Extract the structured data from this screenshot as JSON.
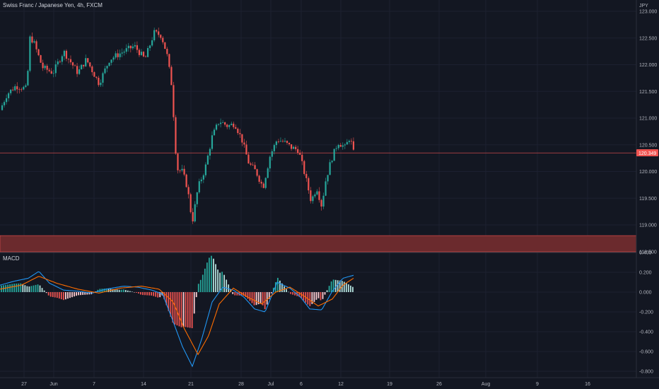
{
  "header": {
    "symbol_title": "Swiss Franc / Japanese Yen, 4h, FXCM",
    "currency": "JPY"
  },
  "indicator": {
    "name": "MACD"
  },
  "colors": {
    "background": "#131722",
    "up": "#26a69a",
    "down": "#ef5350",
    "zone": "#6b2a2d",
    "macd_line": "#2196f3",
    "signal_line": "#ff6d00"
  },
  "chart_data": [
    {
      "type": "candlestick",
      "title": "Swiss Franc / Japanese Yen, 4h, FXCM",
      "ylabel": "JPY",
      "ylim": [
        118.45,
        123.1
      ],
      "y_ticks": [
        "123.000",
        "122.500",
        "122.000",
        "121.500",
        "121.000",
        "120.500",
        "120.000",
        "119.500",
        "119.000",
        "118.500"
      ],
      "x_ticks": [
        "27",
        "Jun",
        "7",
        "14",
        "21",
        "28",
        "Jul",
        "6",
        "12",
        "19",
        "26",
        "Aug",
        "9",
        "16"
      ],
      "current_price": "120.349",
      "support_zone": [
        118.48,
        118.8
      ],
      "path_keypoints": [
        [
          0,
          121.15
        ],
        [
          10,
          121.45
        ],
        [
          22,
          121.6
        ],
        [
          38,
          121.55
        ],
        [
          42,
          122.5
        ],
        [
          47,
          122.45
        ],
        [
          60,
          121.95
        ],
        [
          75,
          121.85
        ],
        [
          90,
          122.25
        ],
        [
          110,
          121.85
        ],
        [
          122,
          122.1
        ],
        [
          140,
          121.65
        ],
        [
          155,
          122.1
        ],
        [
          175,
          122.25
        ],
        [
          190,
          122.35
        ],
        [
          205,
          122.1
        ],
        [
          218,
          122.6
        ],
        [
          228,
          122.55
        ],
        [
          236,
          122.2
        ],
        [
          243,
          121.6
        ],
        [
          250,
          120.05
        ],
        [
          258,
          120.0
        ],
        [
          265,
          119.7
        ],
        [
          272,
          119.05
        ],
        [
          280,
          119.7
        ],
        [
          290,
          120.05
        ],
        [
          300,
          120.65
        ],
        [
          310,
          120.95
        ],
        [
          322,
          120.85
        ],
        [
          332,
          120.9
        ],
        [
          342,
          120.6
        ],
        [
          352,
          120.15
        ],
        [
          362,
          120.0
        ],
        [
          372,
          119.7
        ],
        [
          382,
          120.3
        ],
        [
          392,
          120.6
        ],
        [
          402,
          120.55
        ],
        [
          412,
          120.45
        ],
        [
          422,
          120.4
        ],
        [
          432,
          119.9
        ],
        [
          440,
          119.45
        ],
        [
          448,
          119.7
        ],
        [
          455,
          119.35
        ],
        [
          460,
          119.8
        ],
        [
          468,
          120.2
        ],
        [
          478,
          120.55
        ],
        [
          488,
          120.45
        ],
        [
          495,
          120.65
        ],
        [
          500,
          120.35
        ]
      ],
      "macd": {
        "ylim": [
          -0.82,
          0.42
        ],
        "y_ticks": [
          "0.400",
          "0.200",
          "0.000",
          "-0.200",
          "-0.400",
          "-0.600",
          "-0.800"
        ],
        "macd_keypoints": [
          [
            0,
            0.07
          ],
          [
            20,
            0.11
          ],
          [
            40,
            0.14
          ],
          [
            55,
            0.21
          ],
          [
            70,
            0.09
          ],
          [
            90,
            0.02
          ],
          [
            110,
            0.01
          ],
          [
            130,
            -0.01
          ],
          [
            150,
            0.03
          ],
          [
            175,
            0.06
          ],
          [
            195,
            0.05
          ],
          [
            215,
            0.02
          ],
          [
            230,
            -0.02
          ],
          [
            245,
            -0.3
          ],
          [
            258,
            -0.55
          ],
          [
            272,
            -0.75
          ],
          [
            285,
            -0.48
          ],
          [
            300,
            -0.1
          ],
          [
            315,
            0.05
          ],
          [
            330,
            0.02
          ],
          [
            345,
            -0.05
          ],
          [
            360,
            -0.17
          ],
          [
            375,
            -0.2
          ],
          [
            392,
            0.1
          ],
          [
            410,
            0.04
          ],
          [
            425,
            -0.05
          ],
          [
            438,
            -0.17
          ],
          [
            455,
            -0.18
          ],
          [
            470,
            0.01
          ],
          [
            485,
            0.14
          ],
          [
            500,
            0.17
          ]
        ],
        "signal_keypoints": [
          [
            0,
            0.03
          ],
          [
            30,
            0.07
          ],
          [
            55,
            0.16
          ],
          [
            80,
            0.09
          ],
          [
            110,
            0.03
          ],
          [
            140,
            -0.01
          ],
          [
            170,
            0.04
          ],
          [
            200,
            0.06
          ],
          [
            225,
            0.03
          ],
          [
            245,
            -0.1
          ],
          [
            260,
            -0.36
          ],
          [
            280,
            -0.63
          ],
          [
            295,
            -0.44
          ],
          [
            310,
            -0.12
          ],
          [
            330,
            0.04
          ],
          [
            350,
            -0.05
          ],
          [
            370,
            -0.12
          ],
          [
            390,
            0.0
          ],
          [
            410,
            0.05
          ],
          [
            430,
            -0.04
          ],
          [
            450,
            -0.14
          ],
          [
            470,
            -0.07
          ],
          [
            485,
            0.07
          ],
          [
            500,
            0.14
          ]
        ]
      }
    }
  ]
}
